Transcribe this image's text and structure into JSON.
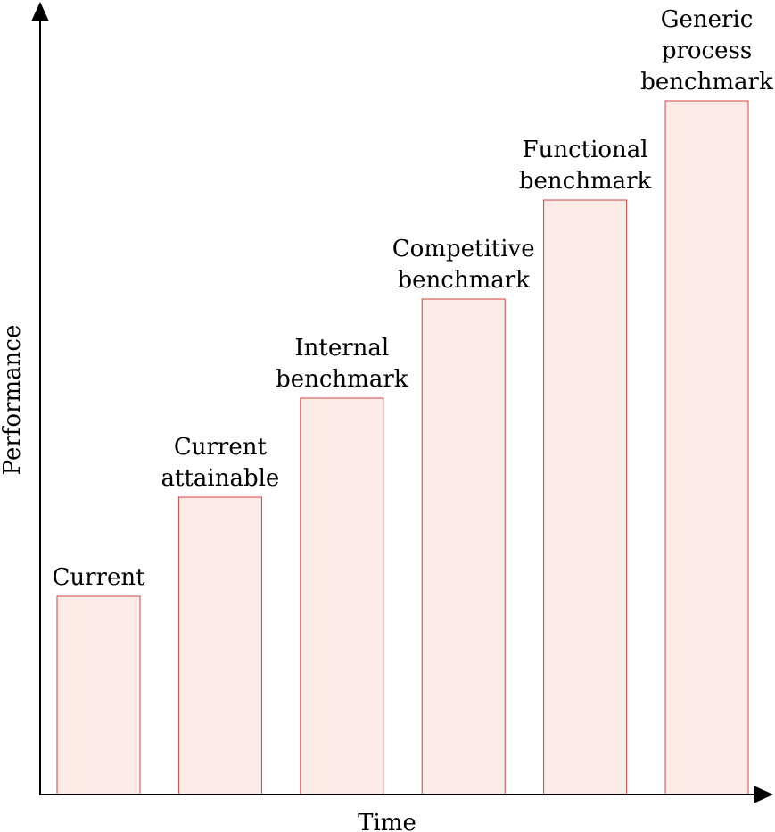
{
  "chart_data": {
    "type": "bar",
    "categories": [
      "Current",
      "Current attainable",
      "Internal benchmark",
      "Competitive benchmark",
      "Functional benchmark",
      "Generic process benchmark"
    ],
    "label_lines": [
      [
        "Current"
      ],
      [
        "Current",
        "attainable"
      ],
      [
        "Internal",
        "benchmark"
      ],
      [
        "Competitive",
        "benchmark"
      ],
      [
        "Functional",
        "benchmark"
      ],
      [
        "Generic",
        "process",
        "benchmark"
      ]
    ],
    "values": [
      1,
      1.5,
      2,
      2.5,
      3,
      3.5
    ],
    "ylim": [
      0,
      4
    ],
    "xlabel": "Time",
    "ylabel": "Performance",
    "grid": false,
    "legend": "none",
    "colors": {
      "bar_fill": "#fcebe7",
      "bar_stroke": "#d0443f",
      "axis": "#000000",
      "text": "#000000"
    }
  }
}
